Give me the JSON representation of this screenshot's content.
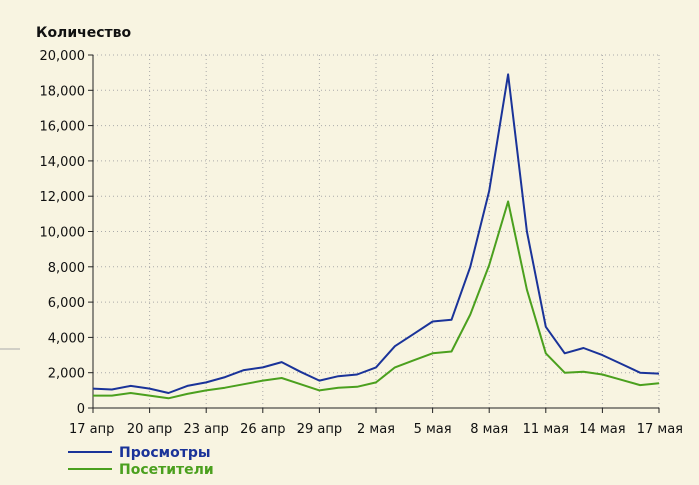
{
  "chart_data": {
    "type": "line",
    "ylabel": "Количество",
    "ylim": [
      0,
      20000
    ],
    "yticks": [
      0,
      2000,
      4000,
      6000,
      8000,
      10000,
      12000,
      14000,
      16000,
      18000,
      20000
    ],
    "ytick_labels": [
      "0",
      "2,000",
      "4,000",
      "6,000",
      "8,000",
      "10,000",
      "12,000",
      "14,000",
      "16,000",
      "18,000",
      "20,000"
    ],
    "x_dates": [
      "17 апр",
      "18 апр",
      "19 апр",
      "20 апр",
      "21 апр",
      "22 апр",
      "23 апр",
      "24 апр",
      "25 апр",
      "26 апр",
      "27 апр",
      "28 апр",
      "29 апр",
      "30 апр",
      "1 мая",
      "2 мая",
      "3 мая",
      "4 мая",
      "5 мая",
      "6 мая",
      "7 мая",
      "8 мая",
      "9 мая",
      "10 мая",
      "11 мая",
      "12 мая",
      "13 мая",
      "14 мая",
      "15 мая",
      "16 мая",
      "17 мая"
    ],
    "xtick_labels": [
      "17 апр",
      "20 апр",
      "23 апр",
      "26 апр",
      "29 апр",
      "2 мая",
      "5 мая",
      "8 мая",
      "11 мая",
      "14 мая",
      "17 мая"
    ],
    "grid": true,
    "legend_position": "bottom-left",
    "series": [
      {
        "name": "Просмотры",
        "color": "#1a3399",
        "values": [
          1100,
          1050,
          1250,
          1100,
          850,
          1250,
          1450,
          1750,
          2150,
          2300,
          2600,
          2050,
          1550,
          1800,
          1900,
          2300,
          3500,
          4200,
          4900,
          5000,
          8000,
          12300,
          18900,
          10000,
          4600,
          3100,
          3400,
          3000,
          2500,
          2000,
          1950
        ]
      },
      {
        "name": "Посетители",
        "color": "#4ba01e",
        "values": [
          700,
          700,
          850,
          700,
          550,
          800,
          1000,
          1150,
          1350,
          1550,
          1700,
          1350,
          1000,
          1150,
          1200,
          1450,
          2300,
          2700,
          3100,
          3200,
          5300,
          8100,
          11700,
          6700,
          3100,
          2000,
          2050,
          1900,
          1600,
          1300,
          1400
        ]
      }
    ]
  }
}
